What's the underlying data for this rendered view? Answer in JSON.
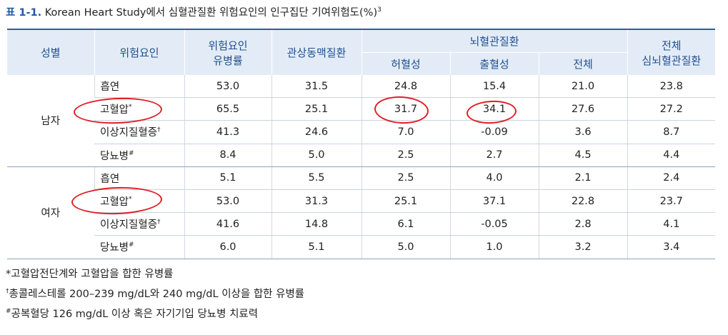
{
  "title": {
    "number": "표 1-1.",
    "text": "Korean Heart Study에서 심혈관질환 위험요인의 인구집단 기여위험도(%)",
    "sup": "3"
  },
  "headers": {
    "sex": "성별",
    "risk": "위험요인",
    "prevalence_1": "위험요인",
    "prevalence_2": "유병률",
    "coronary": "관상동맥질환",
    "cerebro": "뇌혈관질환",
    "ischemic": "허혈성",
    "hemorrhagic": "출혈성",
    "cerebro_total": "전체",
    "total_1": "전체",
    "total_2": "심뇌혈관질환"
  },
  "groups": [
    {
      "sex": "남자",
      "rows": [
        {
          "risk": "흡연",
          "mark": "",
          "values": [
            "53.0",
            "31.5",
            "24.8",
            "15.4",
            "21.0",
            "23.8"
          ]
        },
        {
          "risk": "고혈압",
          "mark": "*",
          "values": [
            "65.5",
            "25.1",
            "31.7",
            "34.1",
            "27.6",
            "27.2"
          ]
        },
        {
          "risk": "이상지질혈증",
          "mark": "†",
          "values": [
            "41.3",
            "24.6",
            "7.0",
            "-0.09",
            "3.6",
            "8.7"
          ]
        },
        {
          "risk": "당뇨병",
          "mark": "#",
          "values": [
            "8.4",
            "5.0",
            "2.5",
            "2.7",
            "4.5",
            "4.4"
          ]
        }
      ]
    },
    {
      "sex": "여자",
      "rows": [
        {
          "risk": "흡연",
          "mark": "",
          "values": [
            "5.1",
            "5.5",
            "2.5",
            "4.0",
            "2.1",
            "2.4"
          ]
        },
        {
          "risk": "고혈압",
          "mark": "*",
          "values": [
            "53.0",
            "31.3",
            "25.1",
            "37.1",
            "22.8",
            "23.7"
          ]
        },
        {
          "risk": "이상지질혈증",
          "mark": "†",
          "values": [
            "41.6",
            "14.8",
            "6.1",
            "-0.05",
            "2.8",
            "4.1"
          ]
        },
        {
          "risk": "당뇨병",
          "mark": "#",
          "values": [
            "6.0",
            "5.1",
            "5.0",
            "1.0",
            "3.2",
            "3.4"
          ]
        }
      ]
    }
  ],
  "notes": [
    {
      "mark": "",
      "text": "*고혈압전단계와 고혈압을 합한 유병률"
    },
    {
      "mark": "†",
      "text": "총콜레스테롤 200–239 mg/dL와 240 mg/dL 이상을 합한 유병률"
    },
    {
      "mark": "#",
      "text": "공복혈당 126 mg/dL 이상 혹은 자기기입 당뇨병 치료력"
    }
  ],
  "annotation_color": "#e01e25"
}
